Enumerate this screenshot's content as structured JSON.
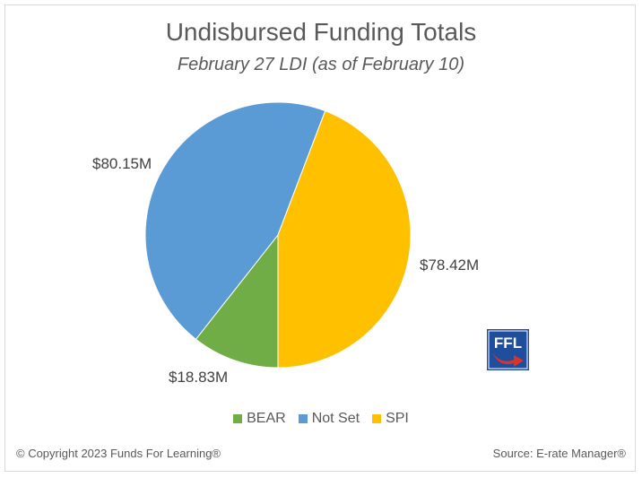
{
  "chart_data": {
    "type": "pie",
    "title": "Undisbursed Funding Totals",
    "subtitle": "February 27 LDI (as of February 10)",
    "categories": [
      "BEAR",
      "Not Set",
      "SPI"
    ],
    "values": [
      18.83,
      80.15,
      78.42
    ],
    "data_labels": [
      "$18.83M",
      "$80.15M",
      "$78.42M"
    ],
    "colors": [
      "#70ad47",
      "#5b9bd5",
      "#ffc000"
    ],
    "legend_position": "bottom"
  },
  "footer": {
    "copyright": "© Copyright 2023 Funds For Learning®",
    "source": "Source: E-rate Manager®"
  },
  "logo": {
    "text": "FFL",
    "colors": {
      "blue": "#1f4e9c",
      "red": "#d9342b"
    }
  }
}
